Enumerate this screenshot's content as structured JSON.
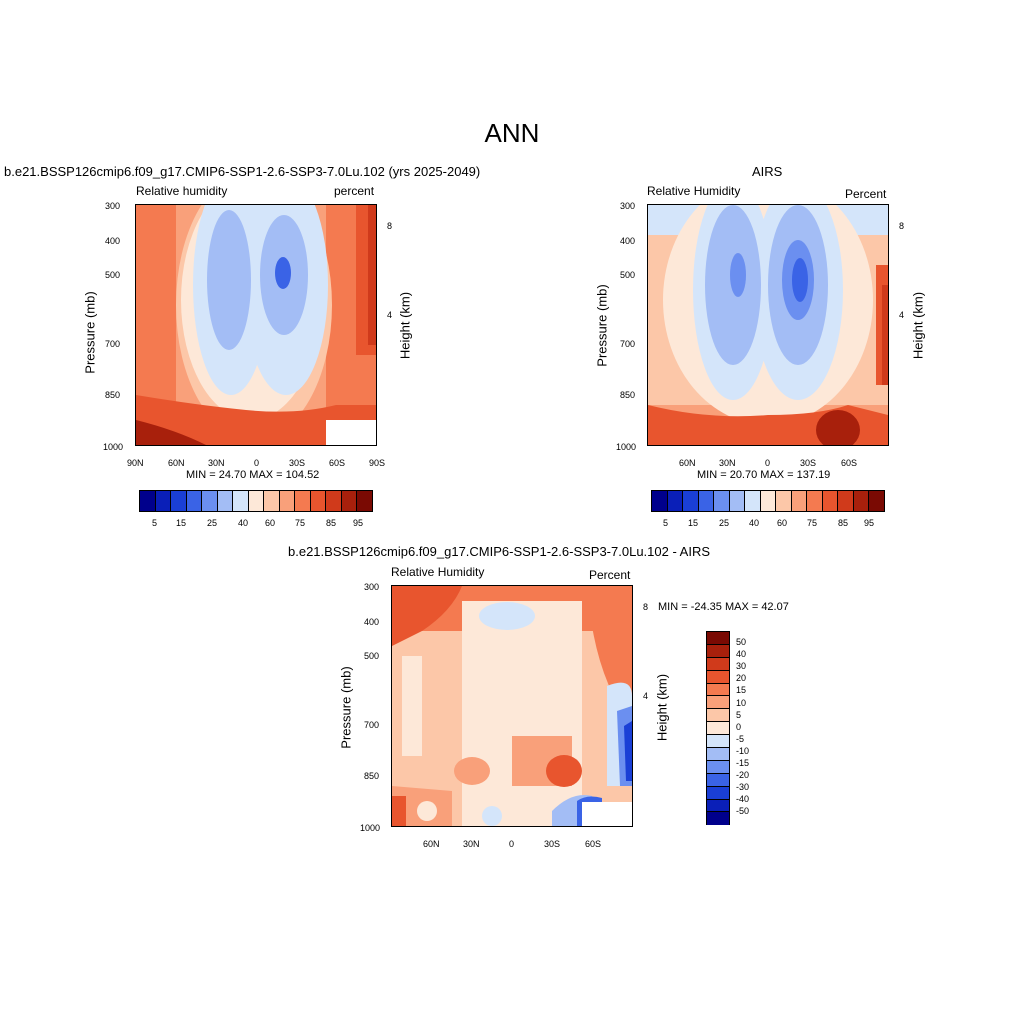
{
  "main_title": "ANN",
  "chart_data": [
    {
      "type": "heatmap",
      "title": "b.e21.BSSP126cmip6.f09_g17.CMIP6-SSP1-2.6-SSP3-7.0Lu.102 (yrs 2025-2049)",
      "left_label": "Relative humidity",
      "right_label": "percent",
      "ylabel": "Pressure (mb)",
      "ylabel_right": "Height (km)",
      "y_ticks": [
        "300",
        "400",
        "500",
        "700",
        "850",
        "1000"
      ],
      "y_ticks_right": [
        "8",
        "4"
      ],
      "x_ticks": [
        "90N",
        "60N",
        "30N",
        "0",
        "30S",
        "60S",
        "90S"
      ],
      "stats": "MIN =  24.70  MAX = 104.52",
      "colorbar_labels": [
        "5",
        "15",
        "25",
        "40",
        "60",
        "75",
        "85",
        "95"
      ]
    },
    {
      "type": "heatmap",
      "title": "AIRS",
      "left_label": "Relative Humidity",
      "right_label": "Percent",
      "ylabel": "Pressure (mb)",
      "ylabel_right": "Height (km)",
      "y_ticks": [
        "300",
        "400",
        "500",
        "700",
        "850",
        "1000"
      ],
      "y_ticks_right": [
        "8",
        "4"
      ],
      "x_ticks": [
        "60N",
        "30N",
        "0",
        "30S",
        "60S"
      ],
      "stats": "MIN =  20.70  MAX = 137.19",
      "colorbar_labels": [
        "5",
        "15",
        "25",
        "40",
        "60",
        "75",
        "85",
        "95"
      ]
    },
    {
      "type": "heatmap",
      "title": "b.e21.BSSP126cmip6.f09_g17.CMIP6-SSP1-2.6-SSP3-7.0Lu.102 - AIRS",
      "left_label": "Relative Humidity",
      "right_label": "Percent",
      "ylabel": "Pressure (mb)",
      "ylabel_right": "Height (km)",
      "y_ticks": [
        "300",
        "400",
        "500",
        "700",
        "850",
        "1000"
      ],
      "y_ticks_right": [
        "8",
        "4"
      ],
      "x_ticks": [
        "60N",
        "30N",
        "0",
        "30S",
        "60S"
      ],
      "stats": "MIN = -24.35  MAX =  42.07",
      "colorbar_labels": [
        "50",
        "40",
        "30",
        "20",
        "15",
        "10",
        "5",
        "0",
        "-5",
        "-10",
        "-15",
        "-20",
        "-30",
        "-40",
        "-50"
      ]
    }
  ],
  "colors": {
    "abs_scale": [
      "#00008c",
      "#0a1fb8",
      "#1a3fd6",
      "#3a63e6",
      "#6b8ff0",
      "#a3bdf5",
      "#d4e5fa",
      "#fde8d8",
      "#fcc7a8",
      "#f9a07a",
      "#f47a50",
      "#e8552e",
      "#d03a1b",
      "#a8200c",
      "#7a0a03"
    ],
    "diff_scale": [
      "#7a0a03",
      "#a8200c",
      "#d03a1b",
      "#e8552e",
      "#f47a50",
      "#f9a07a",
      "#fcc7a8",
      "#fde8d8",
      "#d4e5fa",
      "#a3bdf5",
      "#6b8ff0",
      "#3a63e6",
      "#1a3fd6",
      "#0a1fb8",
      "#00008c"
    ]
  }
}
